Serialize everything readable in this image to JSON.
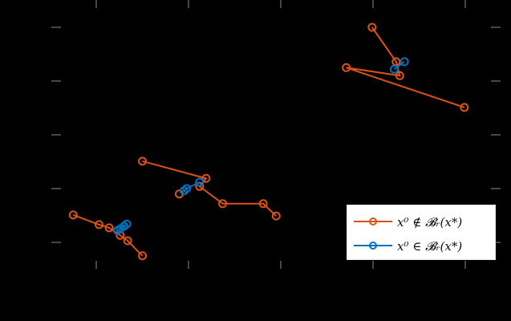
{
  "chart_data": {
    "type": "line",
    "title": "",
    "xlabel": "",
    "ylabel": "",
    "xticks": [
      1,
      2,
      3,
      4,
      5
    ],
    "yticks": [
      1,
      2,
      3,
      4,
      5
    ],
    "tick_labels_visible": false,
    "xlim": [
      0.5,
      5.4
    ],
    "ylim": [
      0.0,
      6.0
    ],
    "grid": false,
    "legend_position": "lower right",
    "colors": {
      "orange": "#D95319",
      "blue": "#0072BD",
      "tick": "#8c8c8c"
    },
    "series": [
      {
        "name": "x0 not in B_r(x*)",
        "color": "#D95319",
        "trajectories": [
          {
            "x": [
              0.75,
              1.03,
              1.14,
              1.26,
              1.34,
              1.5
            ],
            "y": [
              1.51,
              1.33,
              1.27,
              1.13,
              1.03,
              0.75
            ]
          },
          {
            "x": [
              1.5,
              2.19,
              2.12,
              2.37,
              2.81,
              2.95
            ],
            "y": [
              2.51,
              2.19,
              2.04,
              1.72,
              1.72,
              1.49
            ]
          },
          {
            "x": [
              1.9
            ],
            "y": [
              1.9
            ]
          },
          {
            "x": [
              3.99,
              4.25,
              4.29,
              3.71,
              4.99
            ],
            "y": [
              5.0,
              4.36,
              4.1,
              4.25,
              3.51
            ]
          }
        ]
      },
      {
        "name": "x0 in B_r(x*)",
        "color": "#0072BD",
        "trajectories": [
          {
            "x": [
              1.23,
              1.26,
              1.3,
              1.33
            ],
            "y": [
              1.22,
              1.25,
              1.3,
              1.34
            ]
          },
          {
            "x": [
              1.95,
              1.98,
              2.12
            ],
            "y": [
              1.96,
              2.0,
              2.12
            ]
          },
          {
            "x": [
              4.23,
              4.34
            ],
            "y": [
              4.22,
              4.36
            ]
          }
        ]
      }
    ]
  },
  "legend": {
    "items": [
      {
        "label": "x⁰ ∉ 𝓑ᵣ(x*)",
        "color": "#D95319"
      },
      {
        "label": "x⁰ ∈ 𝓑ᵣ(x*)",
        "color": "#0072BD"
      }
    ]
  }
}
